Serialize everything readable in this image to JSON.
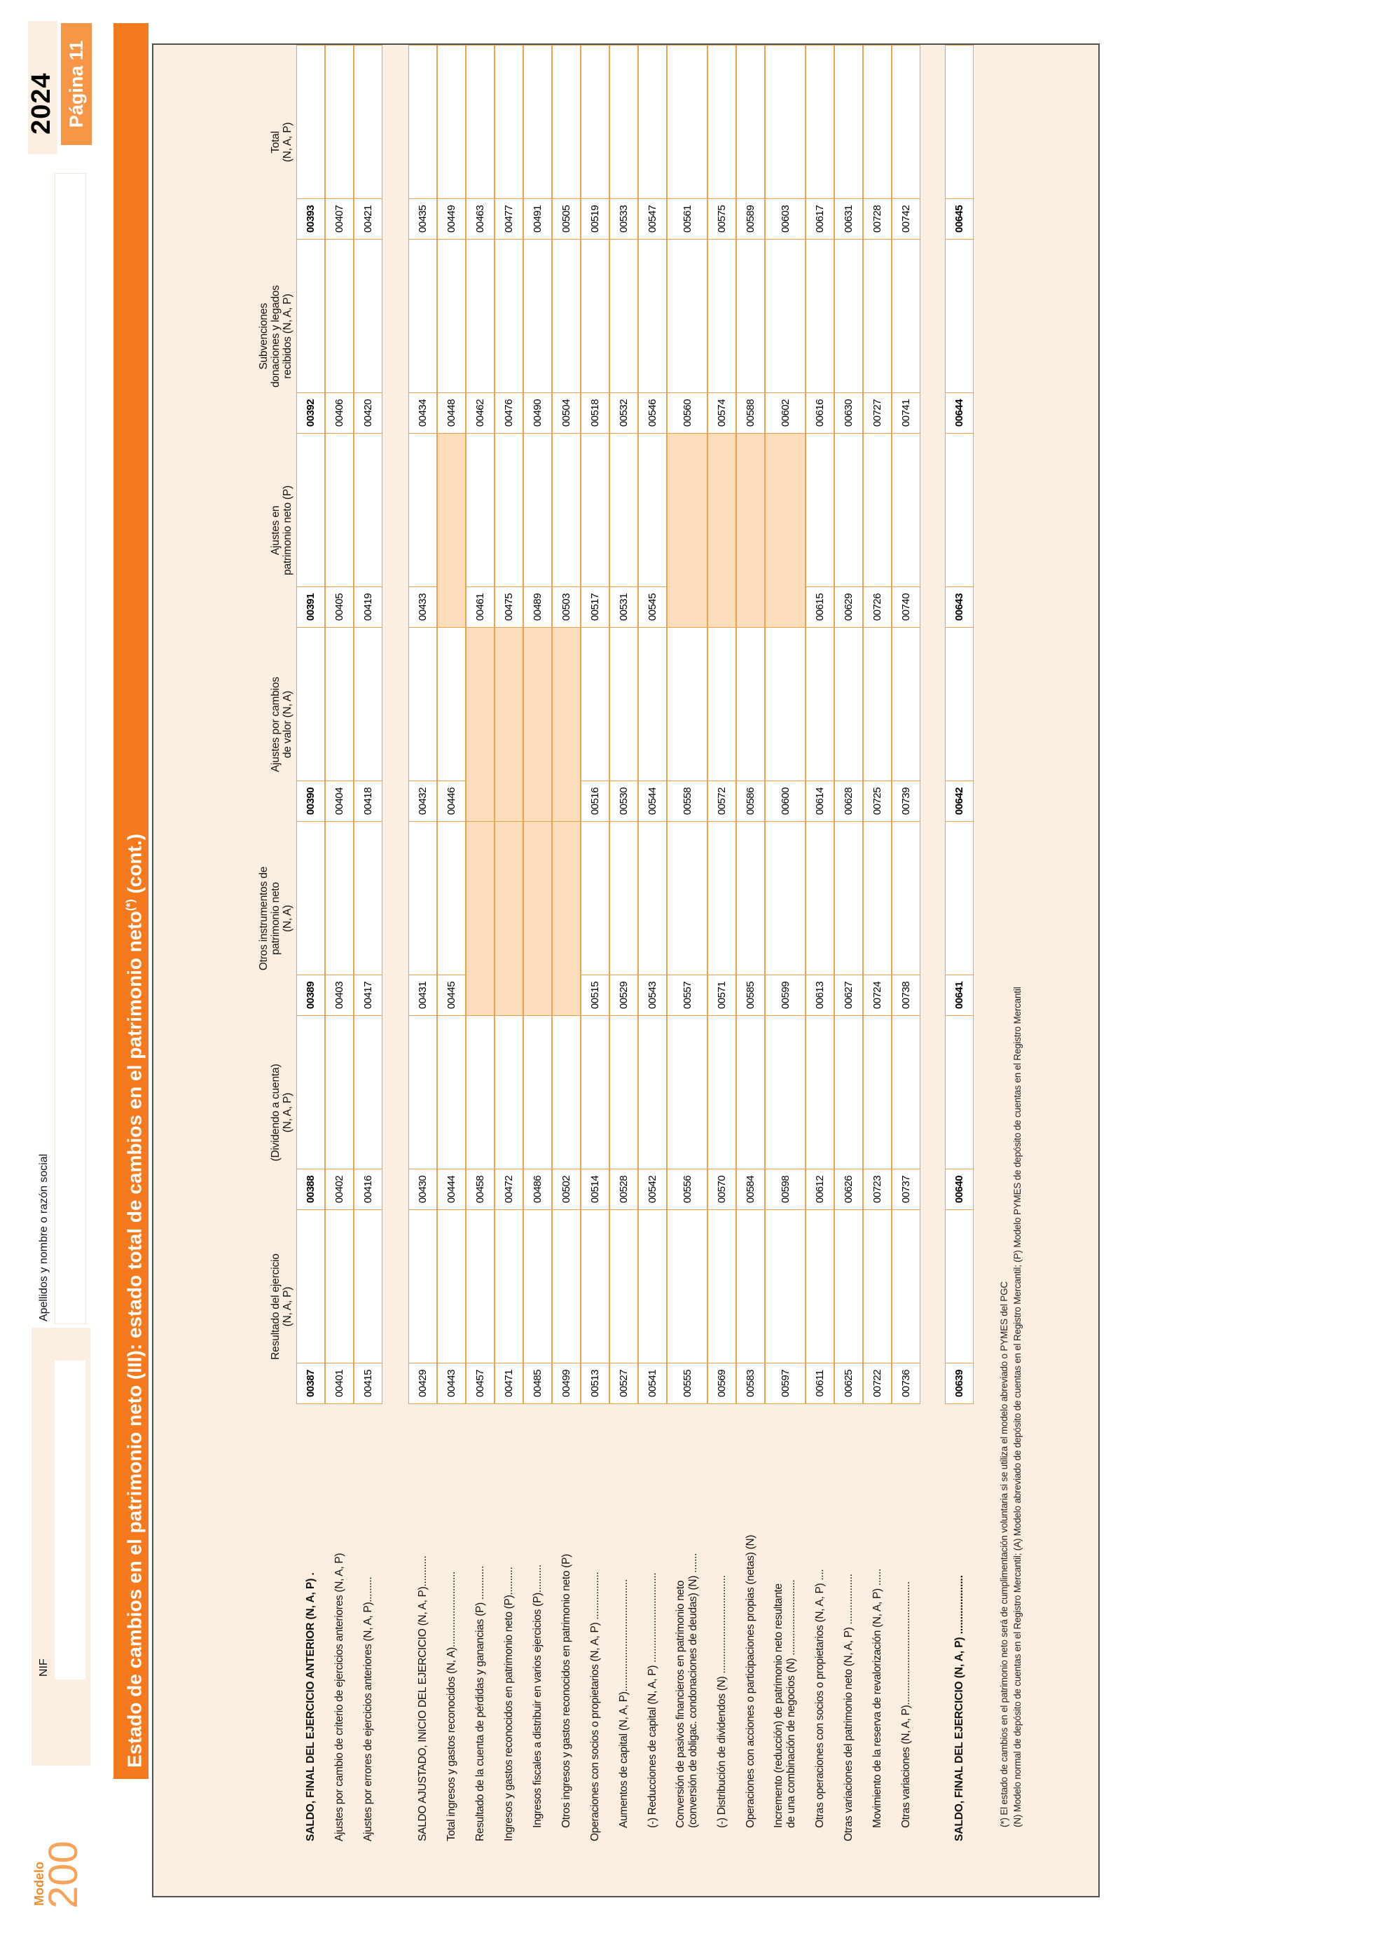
{
  "page": {
    "modelo_label": "Modelo",
    "modelo_number": "200",
    "year": "2024",
    "page_badge": "Página 11",
    "nif_label": "NIF",
    "nif_value": "",
    "apellidos_label": "Apellidos y nombre o razón social",
    "apellidos_value": ""
  },
  "title": {
    "main": "Estado de cambios en el patrimonio neto (III): estado total de cambios en el patrimonio neto",
    "sup": "(*)",
    "tail": " (cont.)"
  },
  "colors": {
    "title_bar_orange": "#F5791D",
    "badge_orange": "#F79647",
    "modelo_orange": "#F6A45B",
    "cream_background": "#FCEFE2",
    "na_cell_shade": "#FBDCBB",
    "cell_border_orange": "#F0A14E",
    "box_border_gray": "#55514a"
  },
  "table": {
    "columns": [
      "Resultado del ejercicio\n(N, A, P)",
      "(Dividendo a cuenta)\n(N, A, P)",
      "Otros instrumentos de\npatrimonio neto\n(N, A)",
      "Ajustes por cambios\nde valor (N, A)",
      "Ajustes en\npatrimonio neto (P)",
      "Subvenciones\ndonaciones y legados\nrecibidos (N, A, P)",
      "Total\n(N, A, P)"
    ],
    "rows": [
      {
        "label": "SALDO, FINAL DEL EJERCICIO ANTERIOR (N, A, P)  .",
        "bold": true,
        "codes": [
          "00387",
          "00388",
          "00389",
          "00390",
          "00391",
          "00392",
          "00393"
        ]
      },
      {
        "label": "Ajustes por cambio de criterio de ejercicios anteriores (N, A, P)",
        "codes": [
          "00401",
          "00402",
          "00403",
          "00404",
          "00405",
          "00406",
          "00407"
        ]
      },
      {
        "label": "Ajustes por errores de ejercicios anteriores (N, A, P).........",
        "codes": [
          "00415",
          "00416",
          "00417",
          "00418",
          "00419",
          "00420",
          "00421"
        ]
      },
      {
        "label": "SALDO AJUSTADO, INICIO DEL EJERCICIO (N, A, P)...........",
        "gap_before": true,
        "codes": [
          "00429",
          "00430",
          "00431",
          "00432",
          "00433",
          "00434",
          "00435"
        ]
      },
      {
        "label": "Total ingresos y gastos reconocidos (N, A)...........................",
        "codes": [
          "00443",
          "00444",
          "00445",
          "00446",
          null,
          "00448",
          "00449"
        ]
      },
      {
        "label": "Resultado de la cuenta de pérdidas y ganancias (P) ............",
        "codes": [
          "00457",
          "00458",
          null,
          null,
          "00461",
          "00462",
          "00463"
        ]
      },
      {
        "label": "Ingresos y gastos reconocidos en patrimonio neto (P)..........",
        "codes": [
          "00471",
          "00472",
          null,
          null,
          "00475",
          "00476",
          "00477"
        ]
      },
      {
        "label": "Ingresos fiscales a distribuir en varios ejercicios (P)..........",
        "indent": true,
        "codes": [
          "00485",
          "00486",
          null,
          null,
          "00489",
          "00490",
          "00491"
        ]
      },
      {
        "label": "Otros ingresos y gastos reconocidos en patrimonio neto (P)",
        "indent": true,
        "codes": [
          "00499",
          "00502",
          null,
          null,
          "00503",
          "00504",
          "00505"
        ]
      },
      {
        "label": "Operaciones con socios o propietarios (N, A, P) .................",
        "codes": [
          "00513",
          "00514",
          "00515",
          "00516",
          "00517",
          "00518",
          "00519"
        ]
      },
      {
        "label": "Aumentos de capital (N, A, P)........................................",
        "indent": true,
        "codes": [
          "00527",
          "00528",
          "00529",
          "00530",
          "00531",
          "00532",
          "00533"
        ]
      },
      {
        "label": "(-) Reducciones de capital (N, A, P) ................................",
        "indent": true,
        "codes": [
          "00541",
          "00542",
          "00543",
          "00544",
          "00545",
          "00546",
          "00547"
        ]
      },
      {
        "label": "Conversión de pasivos financieros en patrimonio neto",
        "label2": "(conversión de obligac. condonaciones de deudas) (N) .......",
        "indent": true,
        "tall": true,
        "codes": [
          "00555",
          "00556",
          "00557",
          "00558",
          null,
          "00560",
          "00561"
        ]
      },
      {
        "label": "(-) Distribución de dividendos (N) ...................................",
        "indent": true,
        "codes": [
          "00569",
          "00570",
          "00571",
          "00572",
          null,
          "00574",
          "00575"
        ]
      },
      {
        "label": "Operaciones con acciones o participaciones propias (netas) (N)",
        "indent": true,
        "codes": [
          "00583",
          "00584",
          "00585",
          "00586",
          null,
          "00588",
          "00589"
        ]
      },
      {
        "label": "Incremento (reducción) de patrimonio neto resultante",
        "label2": "de una combinación de negocios (N)  ...........................",
        "indent": true,
        "tall": true,
        "codes": [
          "00597",
          "00598",
          "00599",
          "00600",
          null,
          "00602",
          "00603"
        ]
      },
      {
        "label": "Otras operaciones con socios o propietarios (N, A, P)  ....",
        "indent": true,
        "codes": [
          "00611",
          "00612",
          "00613",
          "00614",
          "00615",
          "00616",
          "00617"
        ]
      },
      {
        "label": "Otras variaciones del patrimonio neto (N, A, P) ..................",
        "codes": [
          "00625",
          "00626",
          "00627",
          "00628",
          "00629",
          "00630",
          "00631"
        ]
      },
      {
        "label": "Movimiento de la reserva de revalorización (N, A, P) ......",
        "indent": true,
        "codes": [
          "00722",
          "00723",
          "00724",
          "00725",
          "00726",
          "00727",
          "00728"
        ]
      },
      {
        "label": "Otras variaciones (N, A, P)............................................",
        "indent": true,
        "codes": [
          "00736",
          "00737",
          "00738",
          "00739",
          "00740",
          "00741",
          "00742"
        ]
      },
      {
        "label": "SALDO, FINAL DEL EJERCICIO (N, A, P)  ....................",
        "bold": true,
        "gap_before": true,
        "codes": [
          "00639",
          "00640",
          "00641",
          "00642",
          "00643",
          "00644",
          "00645"
        ]
      }
    ]
  },
  "footnotes": [
    "(*) El estado de cambios en el patrimonio neto será de cumplimentación voluntaria si se utiliza el modelo abreviado o PYMES del PGC",
    "(N)  Modelo normal de depósito de cuentas en el Registro Mercantil; (A) Modelo abreviado de depósito de cuentas en el Registro Mercantil; (P) Modelo PYMES de depósito de cuentas en el Registro Mercantil"
  ]
}
